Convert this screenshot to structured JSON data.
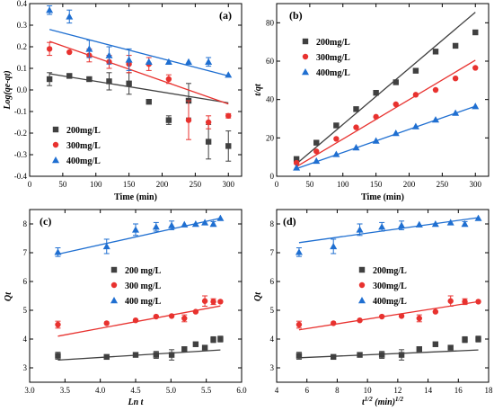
{
  "chart_data": [
    {
      "type": "scatter",
      "panel_label": "(a)",
      "xlabel": "Time (min)",
      "ylabel": "Log(qe-qt)",
      "xlim": [
        0,
        320
      ],
      "ylim": [
        -0.4,
        0.4
      ],
      "xticks": [
        0,
        50,
        100,
        150,
        200,
        250,
        300
      ],
      "yticks": [
        -0.4,
        -0.3,
        -0.2,
        -0.1,
        0.0,
        0.1,
        0.2,
        0.3,
        0.4
      ],
      "ytick_labels": [
        "-0.4",
        "-0.3",
        "-0.2",
        "-0.1",
        "0.0",
        "0.1",
        "0.2",
        "0.3",
        "0.4"
      ],
      "legend_position": "bottom-left",
      "series": [
        {
          "name": "200mg/L",
          "color": "#404040",
          "marker": "square",
          "x": [
            30,
            60,
            90,
            120,
            150,
            180,
            210,
            240,
            270,
            300
          ],
          "y": [
            0.05,
            0.065,
            0.05,
            0.04,
            0.03,
            -0.055,
            -0.14,
            -0.05,
            -0.24,
            -0.26
          ],
          "err": [
            0.03,
            0,
            0,
            0.04,
            0.05,
            0,
            0.02,
            0.08,
            0.08,
            0.07
          ],
          "fit": [
            [
              30,
              0.075
            ],
            [
              300,
              -0.06
            ]
          ]
        },
        {
          "name": "300mg/L",
          "color": "#e8322f",
          "marker": "circle",
          "x": [
            30,
            60,
            90,
            120,
            150,
            180,
            210,
            240,
            270,
            300
          ],
          "y": [
            0.19,
            0.175,
            0.16,
            0.13,
            0.12,
            0.12,
            0.05,
            -0.14,
            -0.15,
            -0.12
          ],
          "err": [
            0.03,
            0,
            0.03,
            0.03,
            0.04,
            0.03,
            0.02,
            0.09,
            0.03,
            0.01
          ],
          "fit": [
            [
              30,
              0.225
            ],
            [
              300,
              -0.065
            ]
          ]
        },
        {
          "name": "400mg/L",
          "color": "#1f6fd1",
          "marker": "triangle",
          "x": [
            30,
            60,
            90,
            120,
            150,
            180,
            210,
            240,
            270,
            300
          ],
          "y": [
            0.37,
            0.34,
            0.19,
            0.16,
            0.14,
            0.13,
            0.13,
            0.13,
            0.13,
            0.07
          ],
          "err": [
            0.02,
            0.03,
            0.04,
            0.04,
            0.05,
            0,
            0,
            0,
            0.02,
            0
          ],
          "fit": [
            [
              30,
              0.28
            ],
            [
              300,
              0.065
            ]
          ]
        }
      ]
    },
    {
      "type": "scatter",
      "panel_label": "(b)",
      "xlabel": "Time (min)",
      "ylabel": "t/qt",
      "xlim": [
        0,
        320
      ],
      "ylim": [
        0,
        90
      ],
      "xticks": [
        0,
        50,
        100,
        150,
        200,
        250,
        300
      ],
      "yticks": [
        0,
        20,
        40,
        60,
        80
      ],
      "ytick_labels": [
        "0",
        "20",
        "40",
        "60",
        "80"
      ],
      "legend_position": "top-left",
      "series": [
        {
          "name": "200mg/L",
          "color": "#404040",
          "marker": "square",
          "x": [
            30,
            60,
            90,
            120,
            150,
            180,
            210,
            240,
            270,
            300
          ],
          "y": [
            9,
            17.5,
            26.5,
            35,
            43.5,
            49,
            55,
            65,
            68,
            75
          ],
          "fit": [
            [
              30,
              6.5
            ],
            [
              300,
              85.5
            ]
          ]
        },
        {
          "name": "300mg/L",
          "color": "#e8322f",
          "marker": "circle",
          "x": [
            30,
            60,
            90,
            120,
            150,
            180,
            210,
            240,
            270,
            300
          ],
          "y": [
            7,
            13,
            19.5,
            25.5,
            31,
            37.5,
            42.5,
            45,
            51,
            56.5
          ],
          "fit": [
            [
              30,
              5
            ],
            [
              300,
              60.5
            ]
          ]
        },
        {
          "name": "400mg/L",
          "color": "#1f6fd1",
          "marker": "triangle",
          "x": [
            30,
            60,
            90,
            120,
            150,
            180,
            210,
            240,
            270,
            300
          ],
          "y": [
            4.5,
            8,
            11.5,
            15,
            18.5,
            22.5,
            26,
            29.5,
            33,
            36.5
          ],
          "fit": [
            [
              30,
              4
            ],
            [
              300,
              36.5
            ]
          ]
        }
      ]
    },
    {
      "type": "scatter",
      "panel_label": "(c)",
      "xlabel": "Ln t",
      "ylabel": "Qt",
      "xlim": [
        3.0,
        6.0
      ],
      "ylim": [
        2.5,
        8.5
      ],
      "xticks": [
        3.0,
        3.5,
        4.0,
        4.5,
        5.0,
        5.5,
        6.0
      ],
      "xtick_labels": [
        "3.0",
        "3.5",
        "4.0",
        "4.5",
        "5.0",
        "5.5",
        "6.0"
      ],
      "yticks": [
        3,
        4,
        5,
        6,
        7,
        8
      ],
      "ytick_labels": [
        "3",
        "4",
        "5",
        "6",
        "7",
        "8"
      ],
      "legend_position": "center-right",
      "series": [
        {
          "name": "200 mg/L",
          "color": "#404040",
          "marker": "square",
          "x": [
            3.4,
            4.09,
            4.5,
            4.79,
            5.01,
            5.19,
            5.35,
            5.48,
            5.6,
            5.7
          ],
          "y": [
            3.42,
            3.38,
            3.45,
            3.45,
            3.45,
            3.65,
            3.82,
            3.7,
            3.98,
            4.0
          ],
          "err": [
            0.12,
            0,
            0.07,
            0.12,
            0.18,
            0,
            0,
            0.05,
            0.1,
            0.1
          ],
          "fit": [
            [
              3.4,
              3.27
            ],
            [
              5.7,
              3.62
            ]
          ]
        },
        {
          "name": "300 mg/L",
          "color": "#e8322f",
          "marker": "circle",
          "x": [
            3.4,
            4.09,
            4.5,
            4.79,
            5.01,
            5.19,
            5.35,
            5.48,
            5.6,
            5.7
          ],
          "y": [
            4.5,
            4.55,
            4.65,
            4.78,
            4.8,
            4.72,
            4.95,
            5.32,
            5.3,
            5.3
          ],
          "err": [
            0.12,
            0,
            0,
            0,
            0,
            0.12,
            0,
            0.18,
            0.1,
            0
          ],
          "fit": [
            [
              3.4,
              4.1
            ],
            [
              5.7,
              5.15
            ]
          ]
        },
        {
          "name": "400 mg/L",
          "color": "#1f6fd1",
          "marker": "triangle",
          "x": [
            3.4,
            4.09,
            4.5,
            4.79,
            5.01,
            5.19,
            5.35,
            5.48,
            5.6,
            5.7
          ],
          "y": [
            7.02,
            7.22,
            7.8,
            7.9,
            7.95,
            7.98,
            8.0,
            8.05,
            8.0,
            8.2
          ],
          "err": [
            0.15,
            0.25,
            0.2,
            0.15,
            0.15,
            0,
            0,
            0,
            0.08,
            0
          ],
          "fit": [
            [
              3.4,
              6.95
            ],
            [
              5.7,
              8.2
            ]
          ]
        }
      ]
    },
    {
      "type": "scatter",
      "panel_label": "(d)",
      "xlabel": "t1/2 (min)1/2",
      "ylabel": "Qt",
      "xlim": [
        4,
        18
      ],
      "ylim": [
        2.5,
        8.5
      ],
      "xticks": [
        4,
        6,
        8,
        10,
        12,
        14,
        16,
        18
      ],
      "yticks": [
        3,
        4,
        5,
        6,
        7,
        8
      ],
      "ytick_labels": [
        "3",
        "4",
        "5",
        "6",
        "7",
        "8"
      ],
      "legend_position": "center-right",
      "series": [
        {
          "name": "200mg/L",
          "color": "#404040",
          "marker": "square",
          "x": [
            5.48,
            7.75,
            9.49,
            10.95,
            12.25,
            13.42,
            14.49,
            15.49,
            16.43,
            17.32
          ],
          "y": [
            3.42,
            3.38,
            3.45,
            3.45,
            3.45,
            3.65,
            3.82,
            3.7,
            3.98,
            4.0
          ],
          "err": [
            0.12,
            0,
            0.07,
            0.12,
            0.18,
            0,
            0,
            0.05,
            0.1,
            0.1
          ],
          "fit": [
            [
              5.48,
              3.35
            ],
            [
              17.32,
              3.62
            ]
          ]
        },
        {
          "name": "300mg/L",
          "color": "#e8322f",
          "marker": "circle",
          "x": [
            5.48,
            7.75,
            9.49,
            10.95,
            12.25,
            13.42,
            14.49,
            15.49,
            16.43,
            17.32
          ],
          "y": [
            4.5,
            4.55,
            4.65,
            4.78,
            4.8,
            4.72,
            4.95,
            5.32,
            5.3,
            5.3
          ],
          "err": [
            0.12,
            0,
            0,
            0,
            0,
            0.12,
            0,
            0.18,
            0.1,
            0
          ],
          "fit": [
            [
              5.48,
              4.32
            ],
            [
              17.32,
              5.3
            ]
          ]
        },
        {
          "name": "400mg/L",
          "color": "#1f6fd1",
          "marker": "triangle",
          "x": [
            5.48,
            7.75,
            9.49,
            10.95,
            12.25,
            13.42,
            14.49,
            15.49,
            16.43,
            17.32
          ],
          "y": [
            7.02,
            7.22,
            7.8,
            7.9,
            7.95,
            7.98,
            8.0,
            8.05,
            8.0,
            8.2
          ],
          "err": [
            0.15,
            0.25,
            0.2,
            0.15,
            0.15,
            0,
            0,
            0,
            0.08,
            0
          ],
          "fit": [
            [
              5.48,
              7.35
            ],
            [
              17.32,
              8.22
            ]
          ]
        }
      ]
    }
  ]
}
